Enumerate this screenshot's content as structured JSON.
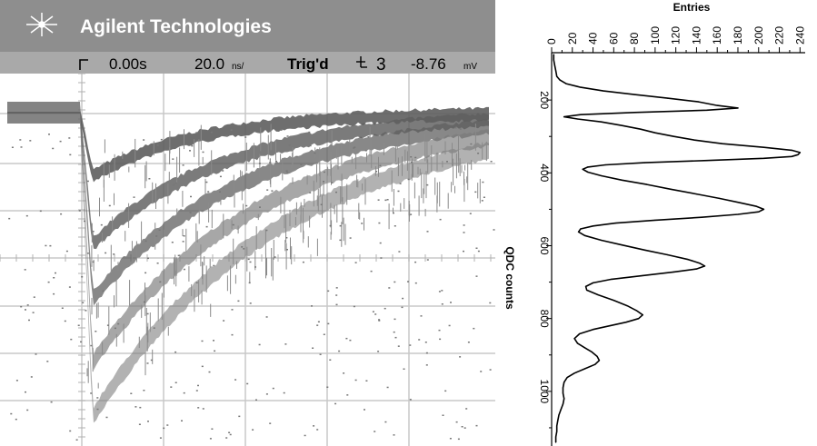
{
  "scope": {
    "brand": "Agilent Technologies",
    "time_ref": "0.00s",
    "timebase": "20.0",
    "timebase_unit": "ns/",
    "trigger_status": "Trig'd",
    "trigger_channel": "3",
    "trigger_level": "-8.76",
    "trigger_level_unit": "mV",
    "colors": {
      "header_bg": "#8e8e8e",
      "header_text": "#ffffff",
      "status_text": "#000000",
      "screen_bg": "#ffffff",
      "grid": "#c8c8c8",
      "trace": "#707070",
      "trace_dark": "#555555"
    }
  },
  "chart_data": {
    "type": "line",
    "orientation": "rotated-90",
    "x_label": "QDC counts",
    "y_label": "Entries",
    "x_ticks": [
      200,
      400,
      600,
      800,
      1000
    ],
    "y_ticks": [
      0,
      20,
      40,
      60,
      80,
      100,
      120,
      140,
      160,
      180,
      200,
      220,
      240
    ],
    "x_range": [
      70,
      1150
    ],
    "y_range": [
      0,
      245
    ],
    "series": [
      {
        "points": [
          [
            75,
            2
          ],
          [
            90,
            2
          ],
          [
            105,
            3
          ],
          [
            120,
            4
          ],
          [
            135,
            5
          ],
          [
            145,
            8
          ],
          [
            155,
            14
          ],
          [
            165,
            28
          ],
          [
            175,
            50
          ],
          [
            185,
            80
          ],
          [
            195,
            112
          ],
          [
            205,
            142
          ],
          [
            215,
            160
          ],
          [
            222,
            180
          ],
          [
            228,
            150
          ],
          [
            234,
            80
          ],
          [
            240,
            28
          ],
          [
            246,
            12
          ],
          [
            252,
            25
          ],
          [
            260,
            48
          ],
          [
            270,
            68
          ],
          [
            280,
            86
          ],
          [
            290,
            100
          ],
          [
            300,
            118
          ],
          [
            310,
            138
          ],
          [
            320,
            165
          ],
          [
            330,
            205
          ],
          [
            338,
            232
          ],
          [
            344,
            240
          ],
          [
            350,
            238
          ],
          [
            355,
            232
          ],
          [
            360,
            205
          ],
          [
            366,
            150
          ],
          [
            372,
            90
          ],
          [
            378,
            52
          ],
          [
            384,
            35
          ],
          [
            390,
            30
          ],
          [
            398,
            35
          ],
          [
            408,
            48
          ],
          [
            420,
            68
          ],
          [
            432,
            92
          ],
          [
            445,
            115
          ],
          [
            458,
            140
          ],
          [
            470,
            162
          ],
          [
            482,
            182
          ],
          [
            492,
            198
          ],
          [
            500,
            205
          ],
          [
            507,
            200
          ],
          [
            514,
            180
          ],
          [
            522,
            145
          ],
          [
            530,
            100
          ],
          [
            538,
            62
          ],
          [
            546,
            40
          ],
          [
            554,
            28
          ],
          [
            562,
            26
          ],
          [
            572,
            32
          ],
          [
            585,
            48
          ],
          [
            598,
            68
          ],
          [
            612,
            90
          ],
          [
            625,
            112
          ],
          [
            638,
            132
          ],
          [
            648,
            143
          ],
          [
            656,
            148
          ],
          [
            664,
            140
          ],
          [
            672,
            118
          ],
          [
            682,
            88
          ],
          [
            692,
            58
          ],
          [
            702,
            40
          ],
          [
            712,
            33
          ],
          [
            722,
            34
          ],
          [
            735,
            45
          ],
          [
            750,
            60
          ],
          [
            765,
            73
          ],
          [
            778,
            82
          ],
          [
            790,
            88
          ],
          [
            800,
            84
          ],
          [
            810,
            72
          ],
          [
            820,
            56
          ],
          [
            830,
            40
          ],
          [
            842,
            27
          ],
          [
            855,
            22
          ],
          [
            868,
            25
          ],
          [
            880,
            32
          ],
          [
            892,
            39
          ],
          [
            904,
            44
          ],
          [
            915,
            46
          ],
          [
            926,
            42
          ],
          [
            938,
            32
          ],
          [
            950,
            22
          ],
          [
            962,
            15
          ],
          [
            975,
            12
          ],
          [
            990,
            11
          ],
          [
            1005,
            11
          ],
          [
            1020,
            12
          ],
          [
            1035,
            11
          ],
          [
            1050,
            9
          ],
          [
            1065,
            7
          ],
          [
            1080,
            6
          ],
          [
            1095,
            5
          ],
          [
            1110,
            5
          ],
          [
            1125,
            4
          ],
          [
            1140,
            4
          ]
        ]
      }
    ]
  }
}
